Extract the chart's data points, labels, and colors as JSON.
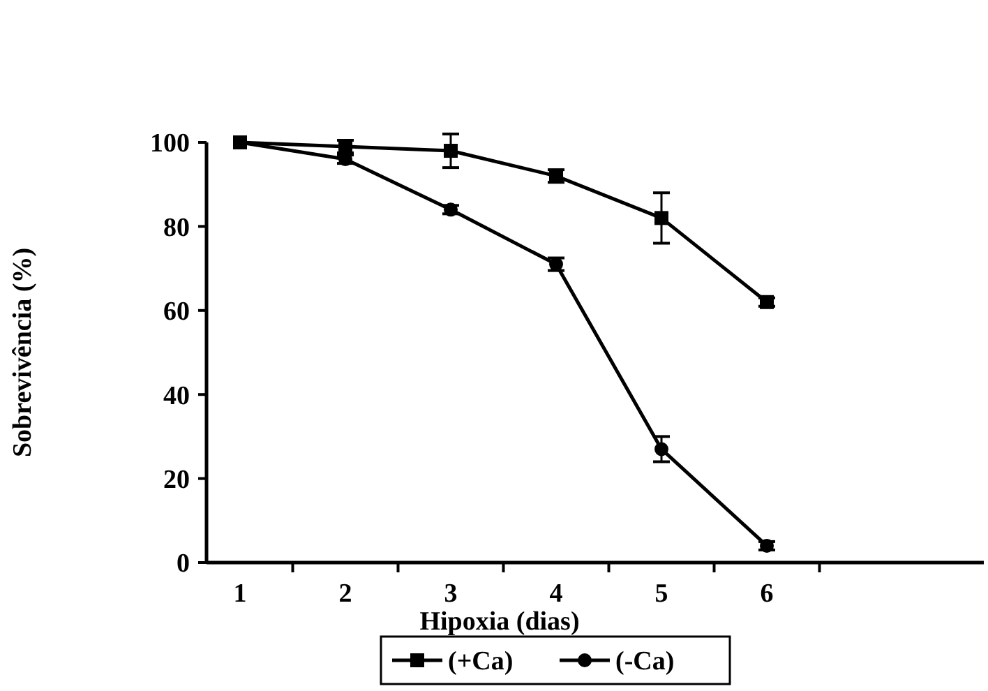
{
  "chart_data": {
    "type": "line",
    "xlabel": "Hipoxia (dias)",
    "ylabel": "Sobrevivência (%)",
    "categories": [
      "1",
      "2",
      "3",
      "4",
      "5",
      "6"
    ],
    "ylim": [
      0,
      100
    ],
    "yticks": [
      0,
      20,
      40,
      60,
      80,
      100
    ],
    "legend": "bottom",
    "grid": false,
    "line_style": "solid",
    "series": [
      {
        "name": "(+Ca)",
        "color": "#000000",
        "marker": "square",
        "values": [
          100,
          99,
          98,
          92,
          82,
          62
        ],
        "errors": [
          null,
          1.5,
          4,
          1.5,
          6,
          1
        ]
      },
      {
        "name": "(-Ca)",
        "color": "#000000",
        "marker": "circle",
        "values": [
          100,
          96,
          84,
          71,
          27,
          4
        ],
        "errors": [
          null,
          1,
          1,
          1.5,
          3,
          1
        ]
      }
    ]
  }
}
